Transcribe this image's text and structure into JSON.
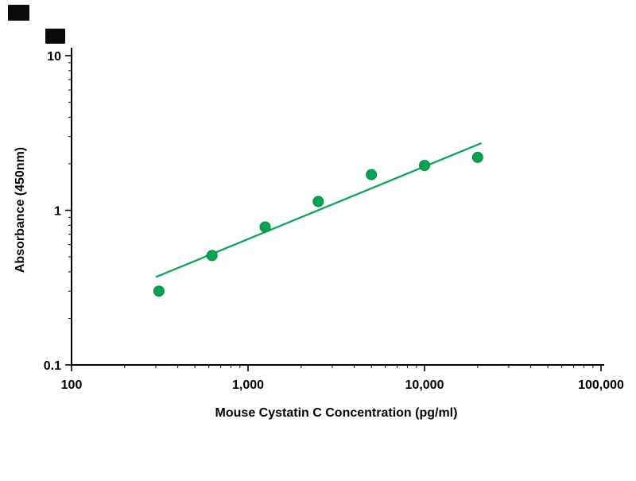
{
  "page": {
    "background": "#ffffff"
  },
  "colors": {
    "accent_green": "#00a550",
    "axis_black": "#000000"
  },
  "chart_data": {
    "type": "scatter",
    "title": "",
    "xlabel": "Mouse Cystatin C Concentration (pg/ml)",
    "ylabel": "Absorbance (450nm)",
    "x_scale": "log",
    "y_scale": "log",
    "xlim": [
      100,
      100000
    ],
    "ylim": [
      0.1,
      10
    ],
    "grid": false,
    "legend": false,
    "x_ticks": [
      {
        "value": 100,
        "label": "100"
      },
      {
        "value": 1000,
        "label": "1,000"
      },
      {
        "value": 10000,
        "label": "10,000"
      },
      {
        "value": 100000,
        "label": "100,000"
      }
    ],
    "y_ticks": [
      {
        "value": 10,
        "label": "10"
      },
      {
        "value": 1,
        "label": "1"
      },
      {
        "value": 0.1,
        "label": "0.1"
      }
    ],
    "series": [
      {
        "name": "standard-curve-points",
        "type": "scatter",
        "marker": "circle",
        "marker_radius": 6.5,
        "color": "#00a550",
        "points": [
          {
            "x": 312.5,
            "y": 0.3
          },
          {
            "x": 625,
            "y": 0.51
          },
          {
            "x": 1250,
            "y": 0.78
          },
          {
            "x": 2500,
            "y": 1.14
          },
          {
            "x": 5000,
            "y": 1.7
          },
          {
            "x": 10000,
            "y": 1.95
          },
          {
            "x": 20000,
            "y": 2.2
          }
        ]
      }
    ],
    "trendline": {
      "color": "#00a550",
      "width": 2.2,
      "from": {
        "x": 300,
        "y": 0.37
      },
      "to": {
        "x": 21000,
        "y": 2.72
      }
    }
  }
}
